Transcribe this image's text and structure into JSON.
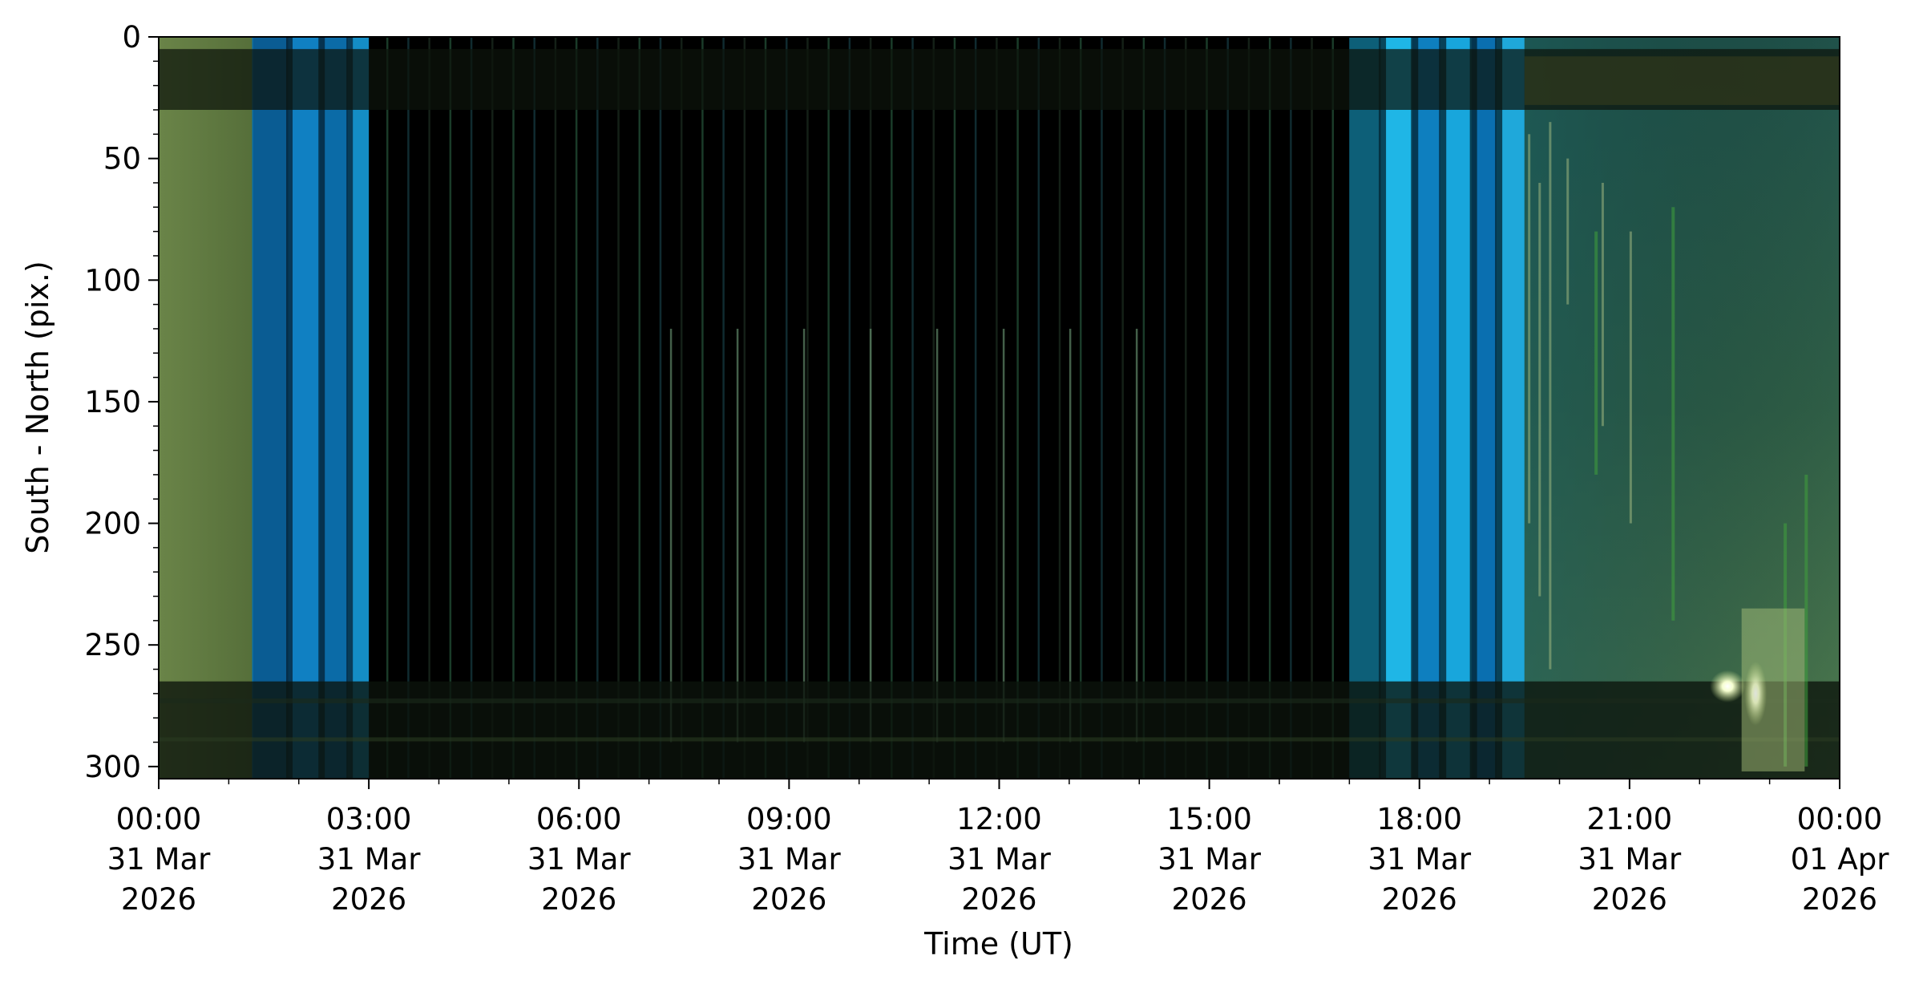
{
  "chart_data": {
    "type": "heatmap",
    "title": "",
    "xlabel": "Time (UT)",
    "ylabel": "South - North (pix.)",
    "x_range": [
      "2026-03-31T00:00",
      "2026-04-01T00:00"
    ],
    "ylim": [
      305,
      0
    ],
    "y_axis_inverted": true,
    "grid": false,
    "legend": "none",
    "x_ticks": [
      {
        "time": "00:00",
        "date": "31 Mar",
        "year": "2026"
      },
      {
        "time": "03:00",
        "date": "31 Mar",
        "year": "2026"
      },
      {
        "time": "06:00",
        "date": "31 Mar",
        "year": "2026"
      },
      {
        "time": "09:00",
        "date": "31 Mar",
        "year": "2026"
      },
      {
        "time": "12:00",
        "date": "31 Mar",
        "year": "2026"
      },
      {
        "time": "15:00",
        "date": "31 Mar",
        "year": "2026"
      },
      {
        "time": "18:00",
        "date": "31 Mar",
        "year": "2026"
      },
      {
        "time": "21:00",
        "date": "31 Mar",
        "year": "2026"
      },
      {
        "time": "00:00",
        "date": "01 Apr",
        "year": "2026"
      }
    ],
    "y_ticks": [
      "0",
      "50",
      "100",
      "150",
      "200",
      "250",
      "300"
    ],
    "y_tick_values": [
      0,
      50,
      100,
      150,
      200,
      250,
      300
    ],
    "segments": [
      {
        "start": "2026-03-31T00:00",
        "end": "2026-03-31T01:20",
        "color": "#5f7a3e"
      },
      {
        "start": "2026-03-31T01:20",
        "end": "2026-03-31T03:00",
        "color": "#0b6fa8"
      },
      {
        "start": "2026-03-31T03:00",
        "end": "2026-03-31T17:00",
        "color": "#000000"
      },
      {
        "start": "2026-03-31T17:00",
        "end": "2026-03-31T19:30",
        "color": "#0f86b8"
      },
      {
        "start": "2026-03-31T19:30",
        "end": "2026-04-01T00:00",
        "color": "#2d5a48"
      }
    ],
    "colors": {
      "background": "#ffffff",
      "axis": "#000000",
      "early_green": "#5f7a3e",
      "twilight_blue": "#0b6fa8",
      "night": "#000000",
      "evening_cyan": "#19b2e0",
      "late_teal": "#2d5a48",
      "bright_spot": "#fffbe0"
    }
  }
}
